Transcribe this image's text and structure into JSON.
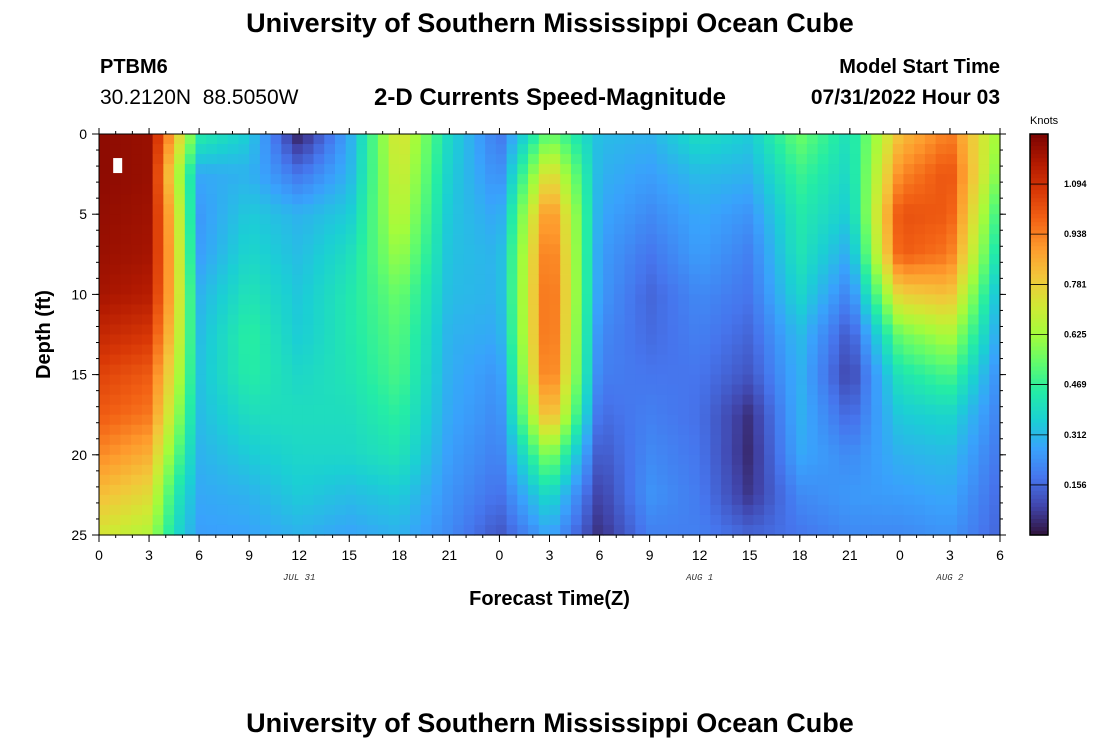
{
  "header": {
    "title": "University of Southern Mississippi Ocean Cube",
    "station_id": "PTBM6",
    "coordinates": "30.2120N  88.5050W",
    "chart_title": "2-D Currents Speed-Magnitude",
    "model_start_label": "Model Start Time",
    "model_start_value": "07/31/2022 Hour 03"
  },
  "footer": {
    "title": "University of Southern Mississippi Ocean Cube"
  },
  "colors": {
    "colormap": [
      "#30123b",
      "#4145ab",
      "#4675ed",
      "#39a2fc",
      "#1bcfd4",
      "#24eca6",
      "#61fc6c",
      "#a4fc3b",
      "#d1e834",
      "#f3c63a",
      "#fe9b2d",
      "#f36315",
      "#d93806",
      "#b11901",
      "#7a0402"
    ]
  },
  "chart_data": {
    "type": "heatmap",
    "title": "2-D Currents Speed-Magnitude",
    "xlabel": "Forecast Time(Z)",
    "ylabel": "Depth (ft)",
    "x_range_hours": [
      0,
      54
    ],
    "y_range_ft": [
      0,
      25
    ],
    "y_inverted": true,
    "x_ticks": [
      "0",
      "3",
      "6",
      "9",
      "12",
      "15",
      "18",
      "21",
      "0",
      "3",
      "6",
      "9",
      "12",
      "15",
      "18",
      "21",
      "0",
      "3",
      "6"
    ],
    "y_ticks": [
      "0",
      "5",
      "10",
      "15",
      "20",
      "25"
    ],
    "date_labels": [
      {
        "text": "JUL 31",
        "hour": 12
      },
      {
        "text": "AUG 1",
        "hour": 36
      },
      {
        "text": "AUG 2",
        "hour": 51
      }
    ],
    "colorbar": {
      "unit": "Knots",
      "min": 0.0,
      "max": 1.25,
      "tick_labels": [
        "0.156",
        "0.312",
        "0.469",
        "0.625",
        "0.781",
        "0.938",
        "1.094"
      ],
      "tick_values": [
        0.156,
        0.312,
        0.469,
        0.625,
        0.781,
        0.938,
        1.094
      ]
    },
    "depth_profiles": [
      {
        "hour": 0,
        "values": [
          1.22,
          1.22,
          1.21,
          1.2,
          1.18,
          1.12,
          1.05,
          1.0,
          0.92,
          0.82,
          0.72
        ]
      },
      {
        "hour": 3,
        "values": [
          1.2,
          1.2,
          1.19,
          1.18,
          1.15,
          1.08,
          1.0,
          0.95,
          0.85,
          0.75,
          0.65
        ]
      },
      {
        "hour": 4.5,
        "values": [
          0.85,
          0.72,
          0.8,
          0.82,
          0.82,
          0.78,
          0.72,
          0.65,
          0.55,
          0.45,
          0.4
        ]
      },
      {
        "hour": 6,
        "values": [
          0.45,
          0.28,
          0.25,
          0.26,
          0.3,
          0.32,
          0.33,
          0.32,
          0.3,
          0.28,
          0.26
        ]
      },
      {
        "hour": 9,
        "values": [
          0.35,
          0.3,
          0.35,
          0.38,
          0.42,
          0.46,
          0.45,
          0.4,
          0.35,
          0.3,
          0.27
        ]
      },
      {
        "hour": 12,
        "values": [
          0.02,
          0.18,
          0.3,
          0.32,
          0.34,
          0.35,
          0.38,
          0.4,
          0.38,
          0.35,
          0.3
        ]
      },
      {
        "hour": 15,
        "values": [
          0.28,
          0.3,
          0.35,
          0.4,
          0.43,
          0.43,
          0.42,
          0.4,
          0.38,
          0.32,
          0.27
        ]
      },
      {
        "hour": 18,
        "values": [
          0.75,
          0.72,
          0.68,
          0.62,
          0.55,
          0.52,
          0.5,
          0.46,
          0.42,
          0.35,
          0.3
        ]
      },
      {
        "hour": 21,
        "values": [
          0.38,
          0.36,
          0.34,
          0.33,
          0.32,
          0.3,
          0.29,
          0.28,
          0.26,
          0.24,
          0.22
        ]
      },
      {
        "hour": 24,
        "values": [
          0.18,
          0.22,
          0.27,
          0.3,
          0.3,
          0.28,
          0.24,
          0.22,
          0.2,
          0.17,
          0.12
        ]
      },
      {
        "hour": 27,
        "values": [
          0.55,
          0.78,
          0.95,
          1.0,
          1.02,
          1.02,
          1.0,
          0.88,
          0.6,
          0.4,
          0.28
        ]
      },
      {
        "hour": 30,
        "values": [
          0.32,
          0.3,
          0.28,
          0.26,
          0.25,
          0.22,
          0.2,
          0.16,
          0.12,
          0.08,
          0.05
        ]
      },
      {
        "hour": 33,
        "values": [
          0.3,
          0.26,
          0.22,
          0.18,
          0.15,
          0.16,
          0.18,
          0.2,
          0.22,
          0.24,
          0.2
        ]
      },
      {
        "hour": 36,
        "values": [
          0.4,
          0.32,
          0.28,
          0.26,
          0.22,
          0.2,
          0.18,
          0.17,
          0.18,
          0.19,
          0.2
        ]
      },
      {
        "hour": 39,
        "values": [
          0.35,
          0.3,
          0.24,
          0.2,
          0.18,
          0.15,
          0.12,
          0.05,
          0.04,
          0.06,
          0.15
        ]
      },
      {
        "hour": 42,
        "values": [
          0.55,
          0.48,
          0.44,
          0.42,
          0.38,
          0.32,
          0.3,
          0.3,
          0.28,
          0.22,
          0.18
        ]
      },
      {
        "hour": 45,
        "values": [
          0.4,
          0.38,
          0.35,
          0.28,
          0.2,
          0.12,
          0.08,
          0.15,
          0.22,
          0.25,
          0.22
        ]
      },
      {
        "hour": 48,
        "values": [
          0.82,
          0.92,
          1.02,
          1.0,
          0.78,
          0.55,
          0.42,
          0.35,
          0.3,
          0.26,
          0.22
        ]
      },
      {
        "hour": 51,
        "values": [
          0.95,
          1.02,
          1.0,
          0.95,
          0.82,
          0.65,
          0.5,
          0.38,
          0.32,
          0.28,
          0.24
        ]
      },
      {
        "hour": 54,
        "values": [
          0.6,
          0.55,
          0.45,
          0.38,
          0.3,
          0.26,
          0.22,
          0.2,
          0.18,
          0.16,
          0.15
        ]
      }
    ]
  }
}
